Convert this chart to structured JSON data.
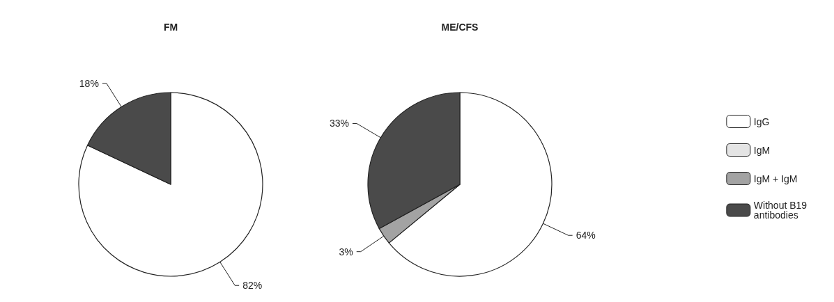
{
  "chart_data": [
    {
      "type": "pie",
      "title": "FM",
      "categories": [
        null,
        null
      ],
      "values": [
        82,
        18
      ],
      "colors": [
        "#ffffff",
        "#4a4a4a"
      ],
      "value_labels": [
        "82%",
        "18%"
      ],
      "legend": false
    },
    {
      "type": "pie",
      "title": "ME/CFS",
      "categories": [
        "IgG",
        "IgM",
        "IgM + IgM",
        "Without B19 antibodies"
      ],
      "values": [
        64,
        0,
        3,
        33
      ],
      "colors": [
        "#ffffff",
        "#e4e4e4",
        "#a3a3a3",
        "#4a4a4a"
      ],
      "value_labels": [
        "64%",
        null,
        "3%",
        "33%"
      ],
      "legend": "right"
    }
  ]
}
